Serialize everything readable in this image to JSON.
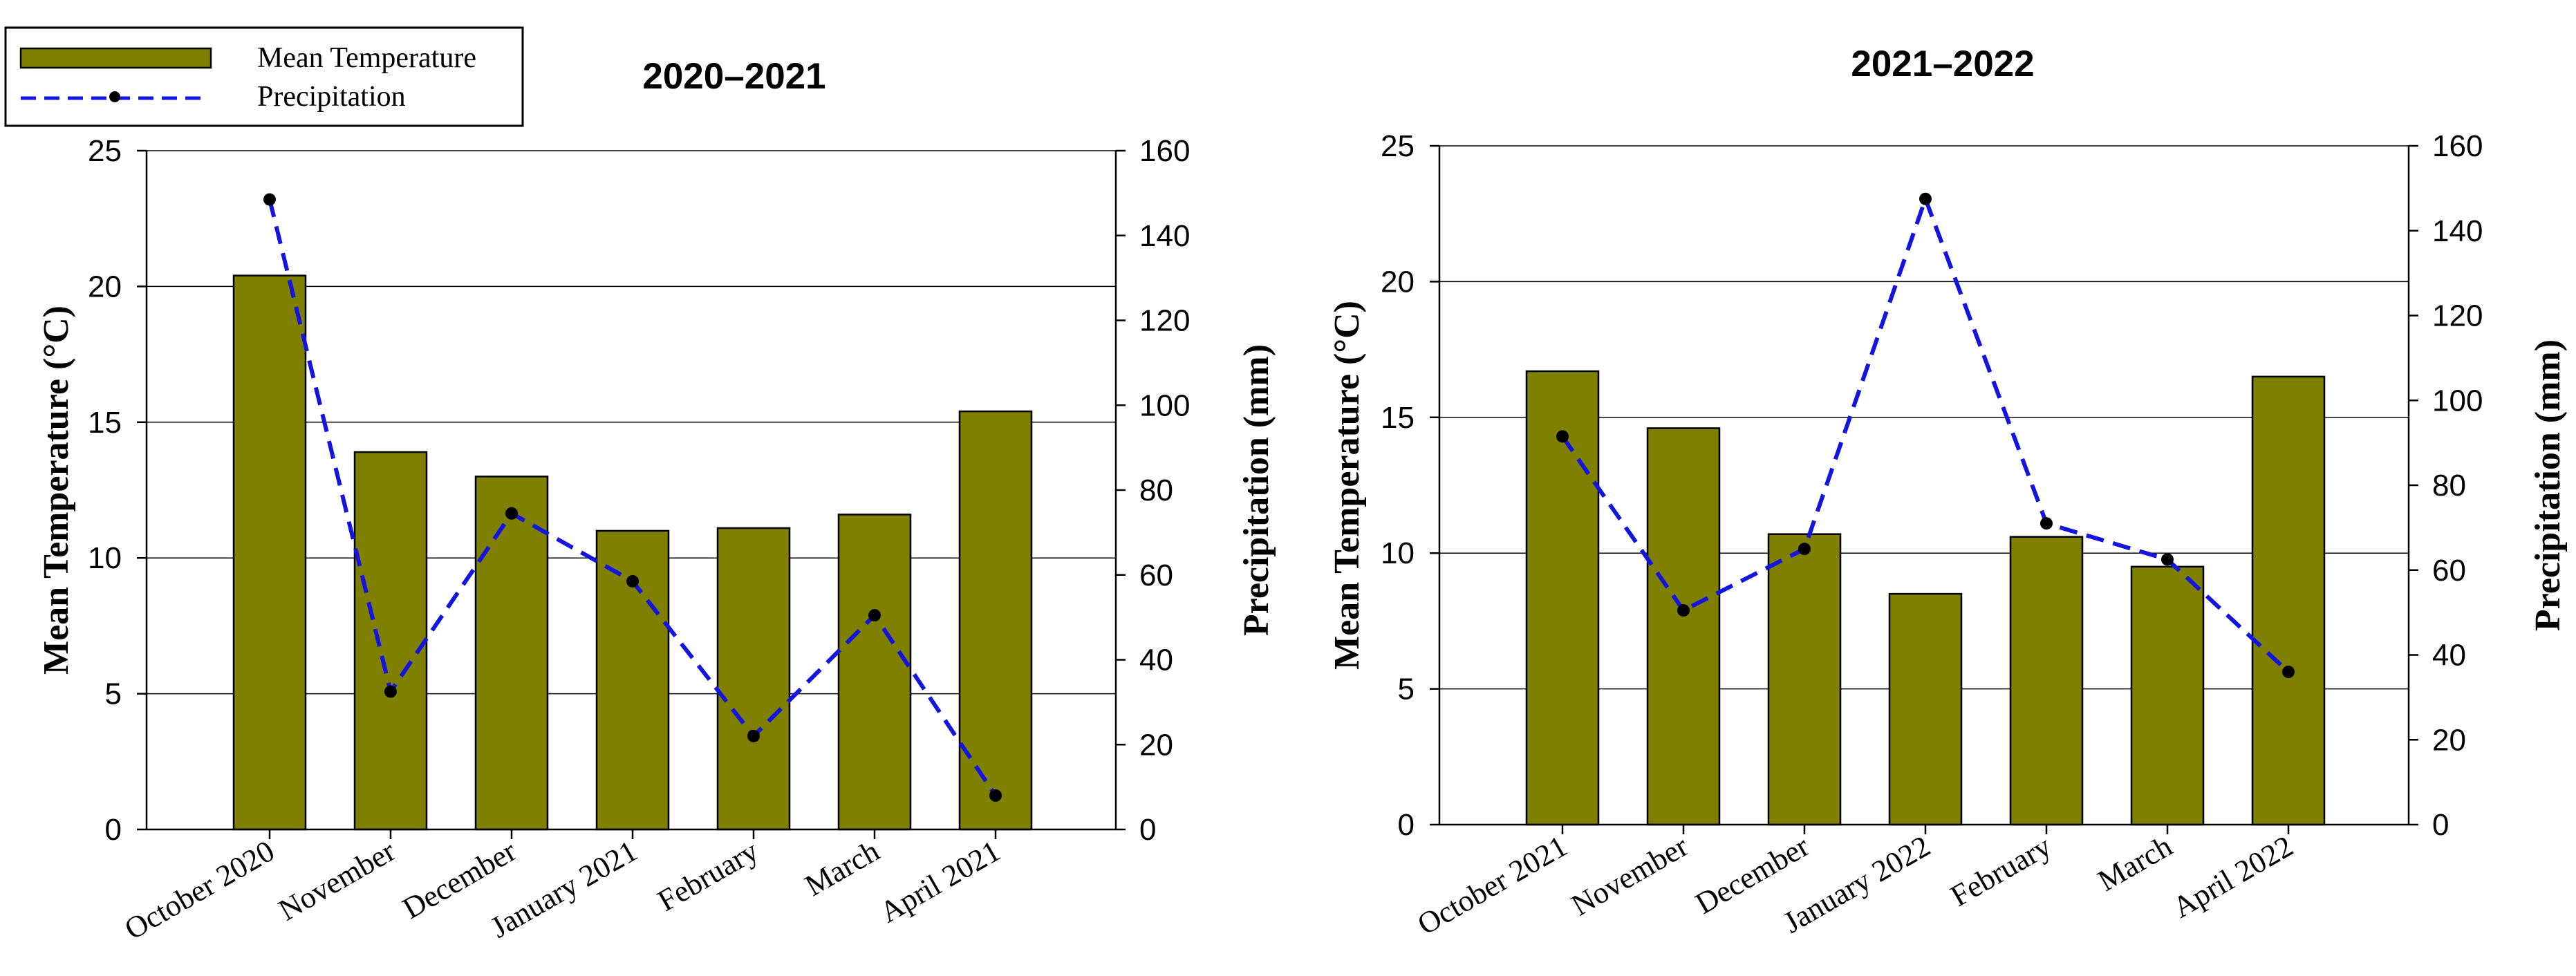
{
  "legend": {
    "bar_label": "Mean Temperature",
    "line_label": "Precipitation"
  },
  "colors": {
    "bar_fill": "#808000",
    "bar_stroke": "#000000",
    "line": "#1414e0",
    "marker": "#000000",
    "grid": "#000000"
  },
  "chart_data": [
    {
      "type": "bar+line",
      "title": "2020–2021",
      "categories": [
        "October 2020",
        "November",
        "December",
        "January 2021",
        "February",
        "March",
        "April 2021"
      ],
      "series": [
        {
          "name": "Mean Temperature",
          "type": "bar",
          "axis": "left",
          "values": [
            20.4,
            13.9,
            13.0,
            11.0,
            11.1,
            11.6,
            15.4
          ]
        },
        {
          "name": "Precipitation",
          "type": "line",
          "axis": "right",
          "values": [
            148.5,
            32.5,
            74.5,
            58.5,
            22.0,
            50.5,
            8.0
          ]
        }
      ],
      "ylabel_left": "Mean Temperature (°C)",
      "ylabel_right": "Precipitation (mm)",
      "ylim_left": [
        0,
        25
      ],
      "ylim_right": [
        0,
        160
      ],
      "yticks_left": [
        "0",
        "5",
        "10",
        "15",
        "20",
        "25"
      ],
      "yticks_right": [
        "0",
        "20",
        "40",
        "60",
        "80",
        "100",
        "120",
        "140",
        "160"
      ],
      "grid": true
    },
    {
      "type": "bar+line",
      "title": "2021–2022",
      "categories": [
        "October 2021",
        "November",
        "December",
        "January 2022",
        "February",
        "March",
        "April 2022"
      ],
      "series": [
        {
          "name": "Mean Temperature",
          "type": "bar",
          "axis": "left",
          "values": [
            16.7,
            14.6,
            10.7,
            8.5,
            10.6,
            9.5,
            16.5
          ]
        },
        {
          "name": "Precipitation",
          "type": "line",
          "axis": "right",
          "values": [
            91.5,
            50.5,
            65.0,
            147.5,
            71.0,
            62.5,
            36.0
          ]
        }
      ],
      "ylabel_left": "Mean Temperature (°C)",
      "ylabel_right": "Precipitation (mm)",
      "ylim_left": [
        0,
        25
      ],
      "ylim_right": [
        0,
        160
      ],
      "yticks_left": [
        "0",
        "5",
        "10",
        "15",
        "20",
        "25"
      ],
      "yticks_right": [
        "0",
        "20",
        "40",
        "60",
        "80",
        "100",
        "120",
        "140",
        "160"
      ],
      "grid": true
    }
  ]
}
